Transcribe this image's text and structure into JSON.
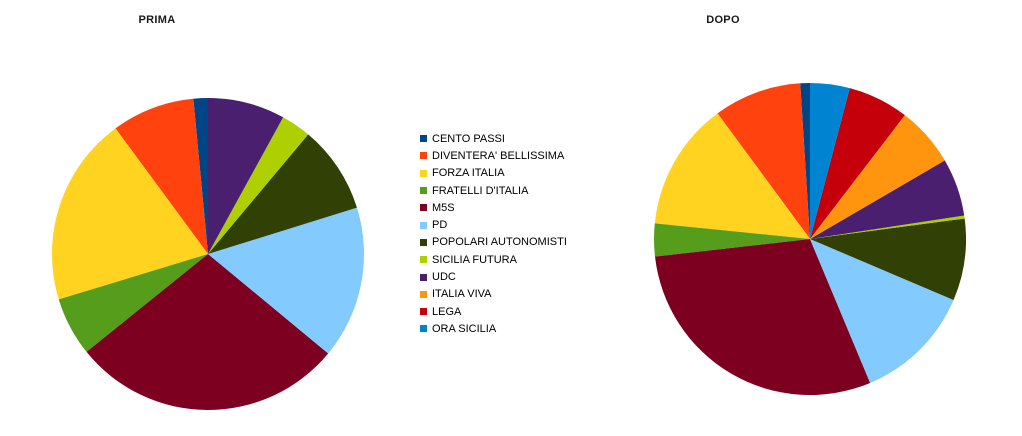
{
  "page": {
    "background": "#ffffff"
  },
  "legend": {
    "items": [
      {
        "label": "CENTO PASSI",
        "color": "#004586"
      },
      {
        "label": "DIVENTERA' BELLISSIMA",
        "color": "#FF420E"
      },
      {
        "label": "FORZA ITALIA",
        "color": "#FFD320"
      },
      {
        "label": "FRATELLI D'ITALIA",
        "color": "#579D1C"
      },
      {
        "label": "M5S",
        "color": "#7E0021"
      },
      {
        "label": "PD",
        "color": "#83CAFF"
      },
      {
        "label": "POPOLARI AUTONOMISTI",
        "color": "#314004"
      },
      {
        "label": "SICILIA FUTURA",
        "color": "#AECF00"
      },
      {
        "label": "UDC",
        "color": "#4B1F6F"
      },
      {
        "label": "ITALIA VIVA",
        "color": "#FF950E"
      },
      {
        "label": "LEGA",
        "color": "#C5000B"
      },
      {
        "label": "ORA SICILIA",
        "color": "#0084D1"
      }
    ]
  },
  "chart_data": [
    {
      "type": "pie",
      "title": "PRIMA",
      "unit": "percent (estimated from slice angles)",
      "start_angle": "12 o'clock",
      "direction": "counterclockwise",
      "legend_position": "center, shared between charts",
      "categories": [
        "CENTO PASSI",
        "DIVENTERA' BELLISSIMA",
        "FORZA ITALIA",
        "FRATELLI D'ITALIA",
        "M5S",
        "PD",
        "POPOLARI AUTONOMISTI",
        "SICILIA FUTURA",
        "UDC",
        "ITALIA VIVA",
        "LEGA",
        "ORA SICILIA"
      ],
      "values": [
        1.5,
        8.6,
        19.6,
        6.1,
        28.2,
        15.8,
        9.1,
        3.1,
        8.0,
        0,
        0,
        0
      ],
      "colors": [
        "#004586",
        "#FF420E",
        "#FFD320",
        "#579D1C",
        "#7E0021",
        "#83CAFF",
        "#314004",
        "#AECF00",
        "#4B1F6F",
        "#FF950E",
        "#C5000B",
        "#0084D1"
      ]
    },
    {
      "type": "pie",
      "title": "DOPO",
      "unit": "percent (estimated from slice angles)",
      "start_angle": "12 o'clock",
      "direction": "counterclockwise",
      "legend_position": "center, shared between charts",
      "categories": [
        "CENTO PASSI",
        "DIVENTERA' BELLISSIMA",
        "FORZA ITALIA",
        "FRATELLI D'ITALIA",
        "M5S",
        "PD",
        "POPOLARI AUTONOMISTI",
        "SICILIA FUTURA",
        "UDC",
        "ITALIA VIVA",
        "LEGA",
        "ORA SICILIA"
      ],
      "values": [
        1.0,
        9.1,
        13.3,
        3.4,
        29.5,
        12.3,
        8.5,
        0.3,
        6.0,
        6.2,
        6.3,
        4.1
      ],
      "colors": [
        "#004586",
        "#FF420E",
        "#FFD320",
        "#579D1C",
        "#7E0021",
        "#83CAFF",
        "#314004",
        "#AECF00",
        "#4B1F6F",
        "#FF950E",
        "#C5000B",
        "#0084D1"
      ]
    }
  ]
}
